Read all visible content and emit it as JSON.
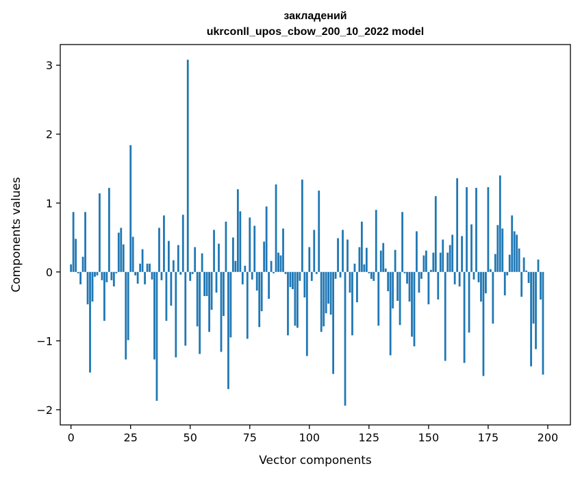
{
  "chart_data": {
    "type": "bar",
    "title_line1": "закладений",
    "title_line2": "ukrconll_upos_cbow_200_10_2022 model",
    "xlabel": "Vector components",
    "ylabel": "Components values",
    "xlim": [
      -4.5,
      209.5
    ],
    "ylim": [
      -2.22,
      3.3
    ],
    "xticks": [
      0,
      25,
      50,
      75,
      100,
      125,
      150,
      175,
      200
    ],
    "xtick_labels": [
      "0",
      "25",
      "50",
      "75",
      "100",
      "125",
      "150",
      "175",
      "200"
    ],
    "yticks": [
      -2,
      -1,
      0,
      1,
      2,
      3
    ],
    "ytick_labels": [
      "−2",
      "−1",
      "0",
      "1",
      "2",
      "3"
    ],
    "bar_color": "#1f77b4",
    "grid": false,
    "values": [
      0.11,
      0.87,
      0.48,
      -0.02,
      -0.18,
      0.22,
      0.87,
      -0.47,
      -1.46,
      -0.43,
      -0.07,
      -0.05,
      1.14,
      -0.12,
      -0.71,
      -0.15,
      1.22,
      -0.12,
      -0.21,
      -0.02,
      0.57,
      0.64,
      0.4,
      -1.27,
      -0.99,
      1.84,
      0.51,
      -0.05,
      -0.17,
      0.12,
      0.33,
      -0.18,
      0.12,
      0.12,
      -0.11,
      -1.27,
      -1.87,
      0.64,
      -0.12,
      0.82,
      -0.71,
      0.45,
      -0.49,
      0.17,
      -1.24,
      0.39,
      -0.04,
      0.83,
      -1.07,
      3.08,
      -0.13,
      -0.03,
      0.36,
      -0.79,
      -1.19,
      0.27,
      -0.35,
      -0.35,
      -0.87,
      -0.55,
      0.61,
      -0.3,
      0.41,
      -1.16,
      -0.64,
      0.73,
      -1.7,
      -0.95,
      0.5,
      0.16,
      1.2,
      0.88,
      -0.18,
      0.09,
      -0.97,
      0.79,
      -0.11,
      0.67,
      -0.27,
      -0.8,
      -0.57,
      0.44,
      0.95,
      -0.39,
      0.16,
      -0.02,
      1.27,
      0.28,
      0.24,
      0.63,
      -0.03,
      -0.92,
      -0.22,
      -0.25,
      -0.78,
      -0.81,
      -0.13,
      1.34,
      -0.37,
      -1.22,
      0.36,
      -0.13,
      0.61,
      -0.03,
      1.18,
      -0.87,
      -0.79,
      -0.6,
      -0.46,
      -0.62,
      -1.48,
      -0.1,
      0.49,
      -0.08,
      0.61,
      -1.94,
      0.47,
      -0.3,
      -0.92,
      0.12,
      -0.44,
      0.36,
      0.73,
      0.11,
      0.35,
      -0.02,
      -0.1,
      -0.13,
      0.9,
      -0.78,
      0.31,
      0.42,
      0.05,
      -0.28,
      -1.21,
      -0.53,
      0.32,
      -0.42,
      -0.77,
      0.87,
      -0.02,
      -0.17,
      -0.43,
      -0.94,
      -1.08,
      0.59,
      -0.3,
      -0.1,
      0.24,
      0.31,
      -0.47,
      0.03,
      0.28,
      1.1,
      -0.4,
      0.28,
      0.47,
      -1.29,
      0.28,
      0.39,
      0.54,
      -0.18,
      1.36,
      -0.21,
      0.52,
      -1.32,
      1.23,
      -0.88,
      0.69,
      -0.11,
      1.22,
      -0.15,
      -0.43,
      -1.51,
      -0.31,
      1.23,
      0.04,
      -0.75,
      0.26,
      0.68,
      1.4,
      0.63,
      -0.34,
      -0.05,
      0.25,
      0.82,
      0.59,
      0.54,
      0.34,
      -0.36,
      0.21,
      0.02,
      -0.16,
      -1.37,
      -0.75,
      -1.12,
      0.18,
      -0.4,
      -1.49
    ]
  }
}
